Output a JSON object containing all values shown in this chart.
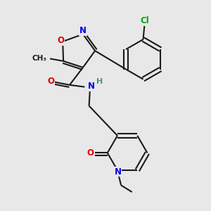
{
  "background_color": "#e8e8e8",
  "bond_color": "#1a1a1a",
  "atom_colors": {
    "O": "#dd0000",
    "N": "#0000ee",
    "Cl": "#00aa00",
    "C": "#1a1a1a",
    "H": "#4a9090"
  },
  "figsize": [
    3.0,
    3.0
  ],
  "dpi": 100
}
